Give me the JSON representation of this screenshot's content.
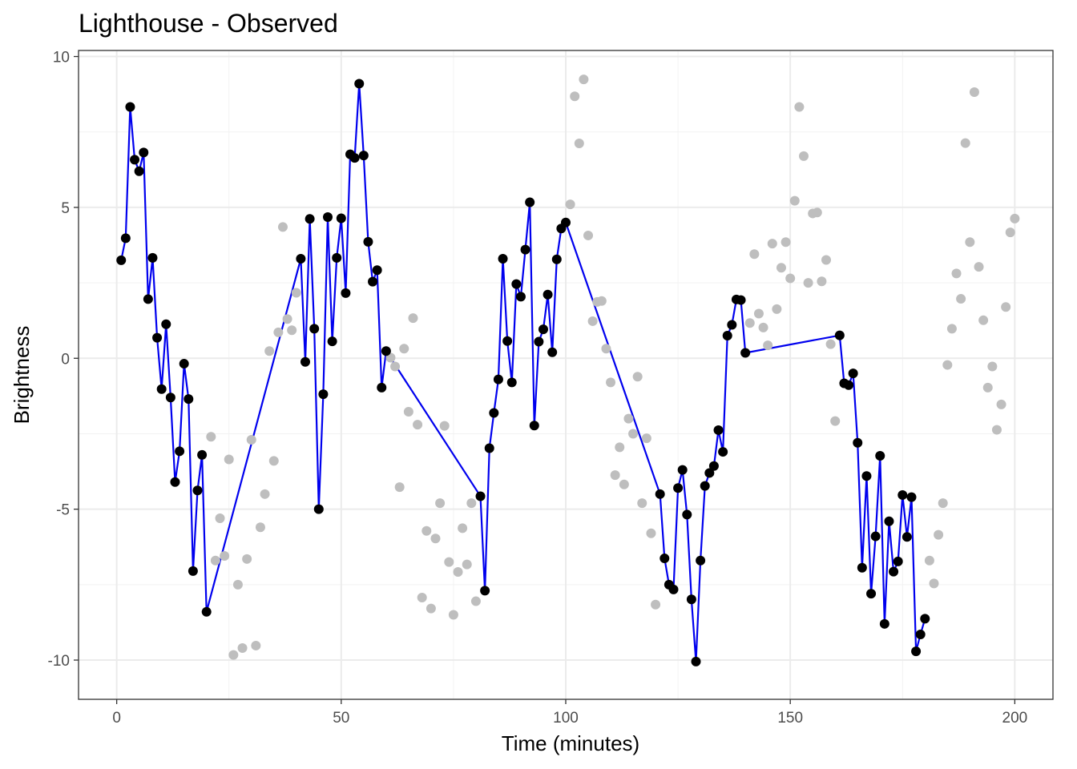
{
  "chart_data": {
    "type": "scatter",
    "title": "Lighthouse - Observed",
    "xlabel": "Time (minutes)",
    "ylabel": "Brightness",
    "xlim": [
      -8.5,
      208.5
    ],
    "ylim": [
      -11.3,
      10.2
    ],
    "x_ticks": [
      0,
      50,
      100,
      150,
      200
    ],
    "y_ticks": [
      -10,
      -5,
      0,
      5,
      10
    ],
    "x_tick_labels": [
      "0",
      "50",
      "100",
      "150",
      "200"
    ],
    "y_tick_labels": [
      "-10",
      "-5",
      "0",
      "5",
      "10"
    ],
    "grid": true,
    "legend": "none",
    "colors": {
      "observed": "#000000",
      "unobserved": "#bebebe",
      "line": "#0000ee"
    },
    "series": [
      {
        "role": "observed-points-connected",
        "x": [
          1,
          2,
          3,
          4,
          5,
          6,
          7,
          8,
          9,
          10,
          11,
          12,
          13,
          14,
          15,
          16,
          17,
          18,
          19,
          20,
          41,
          42,
          43,
          44,
          45,
          46,
          47,
          48,
          49,
          50,
          51,
          52,
          53,
          54,
          55,
          56,
          57,
          58,
          59,
          60,
          81,
          82,
          83,
          84,
          85,
          86,
          87,
          88,
          89,
          90,
          91,
          92,
          93,
          94,
          95,
          96,
          97,
          98,
          99,
          100,
          121,
          122,
          123,
          124,
          125,
          126,
          127,
          128,
          129,
          130,
          131,
          132,
          133,
          134,
          135,
          136,
          137,
          138,
          139,
          140,
          161,
          162,
          163,
          164,
          165,
          166,
          167,
          168,
          169,
          170,
          171,
          172,
          173,
          174,
          175,
          176,
          177,
          178,
          179,
          180
        ],
        "y": [
          3.25,
          3.98,
          8.33,
          6.58,
          6.2,
          6.82,
          1.96,
          3.33,
          0.68,
          -1.02,
          1.13,
          -1.3,
          -4.1,
          -3.08,
          -0.18,
          -1.35,
          -7.05,
          -4.38,
          -3.2,
          -8.4,
          3.3,
          -0.12,
          4.62,
          0.98,
          -5.0,
          -1.19,
          4.68,
          0.56,
          3.33,
          4.64,
          2.16,
          6.76,
          6.64,
          9.1,
          6.72,
          3.86,
          2.54,
          2.92,
          -0.97,
          0.24,
          -4.57,
          -7.7,
          -2.98,
          -1.81,
          -0.7,
          3.3,
          0.57,
          -0.8,
          2.46,
          2.04,
          3.6,
          5.17,
          -2.23,
          0.55,
          0.96,
          2.11,
          0.2,
          3.28,
          4.3,
          4.5,
          -4.5,
          -6.63,
          -7.5,
          -7.66,
          -4.3,
          -3.7,
          -5.18,
          -7.99,
          -10.05,
          -6.7,
          -4.23,
          -3.8,
          -3.57,
          -2.38,
          -3.1,
          0.75,
          1.11,
          1.95,
          1.93,
          0.18,
          0.76,
          -0.83,
          -0.89,
          -0.5,
          -2.8,
          -6.94,
          -3.9,
          -7.8,
          -5.9,
          -3.23,
          -8.8,
          -5.4,
          -7.07,
          -6.73,
          -4.53,
          -5.92,
          -4.6,
          -9.71,
          -9.15,
          -8.63
        ]
      },
      {
        "role": "unobserved-points",
        "x": [
          21,
          22,
          23,
          24,
          25,
          26,
          27,
          28,
          29,
          30,
          31,
          32,
          33,
          34,
          35,
          36,
          37,
          38,
          39,
          40,
          61,
          62,
          63,
          64,
          65,
          66,
          67,
          68,
          69,
          70,
          71,
          72,
          73,
          74,
          75,
          76,
          77,
          78,
          79,
          80,
          101,
          102,
          103,
          104,
          105,
          106,
          107,
          108,
          109,
          110,
          111,
          112,
          113,
          114,
          115,
          116,
          117,
          118,
          119,
          120,
          141,
          142,
          143,
          144,
          145,
          146,
          147,
          148,
          149,
          150,
          151,
          152,
          153,
          154,
          155,
          156,
          157,
          158,
          159,
          160,
          181,
          182,
          183,
          184,
          185,
          186,
          187,
          188,
          189,
          190,
          191,
          192,
          193,
          194,
          195,
          196,
          197,
          198,
          199,
          200
        ],
        "y": [
          -2.6,
          -6.7,
          -5.3,
          -6.55,
          -3.35,
          -9.83,
          -7.5,
          -9.6,
          -6.65,
          -2.7,
          -9.52,
          -5.6,
          -4.5,
          0.24,
          -3.4,
          0.86,
          4.35,
          1.3,
          0.93,
          2.17,
          0.02,
          -0.27,
          -4.27,
          0.32,
          -1.77,
          1.33,
          -2.2,
          -7.93,
          -5.72,
          -8.29,
          -5.97,
          -4.8,
          -2.24,
          -6.75,
          -8.5,
          -7.08,
          -5.63,
          -6.83,
          -4.8,
          -8.05,
          5.1,
          8.68,
          7.12,
          9.24,
          4.07,
          1.23,
          1.87,
          1.9,
          0.32,
          -0.8,
          -3.87,
          -2.95,
          -4.18,
          -2.0,
          -2.5,
          -0.61,
          -4.8,
          -2.65,
          -5.8,
          -8.16,
          1.17,
          3.45,
          1.48,
          1.02,
          0.43,
          3.8,
          1.63,
          3.0,
          3.85,
          2.65,
          5.22,
          8.33,
          6.7,
          2.5,
          4.8,
          4.83,
          2.55,
          3.26,
          0.47,
          -2.08,
          -6.7,
          -7.46,
          -5.85,
          -4.8,
          -0.22,
          0.98,
          2.81,
          1.97,
          7.13,
          3.85,
          8.82,
          3.03,
          1.26,
          -0.97,
          -0.27,
          -2.37,
          -1.53,
          1.7,
          4.17,
          4.63
        ]
      }
    ]
  }
}
